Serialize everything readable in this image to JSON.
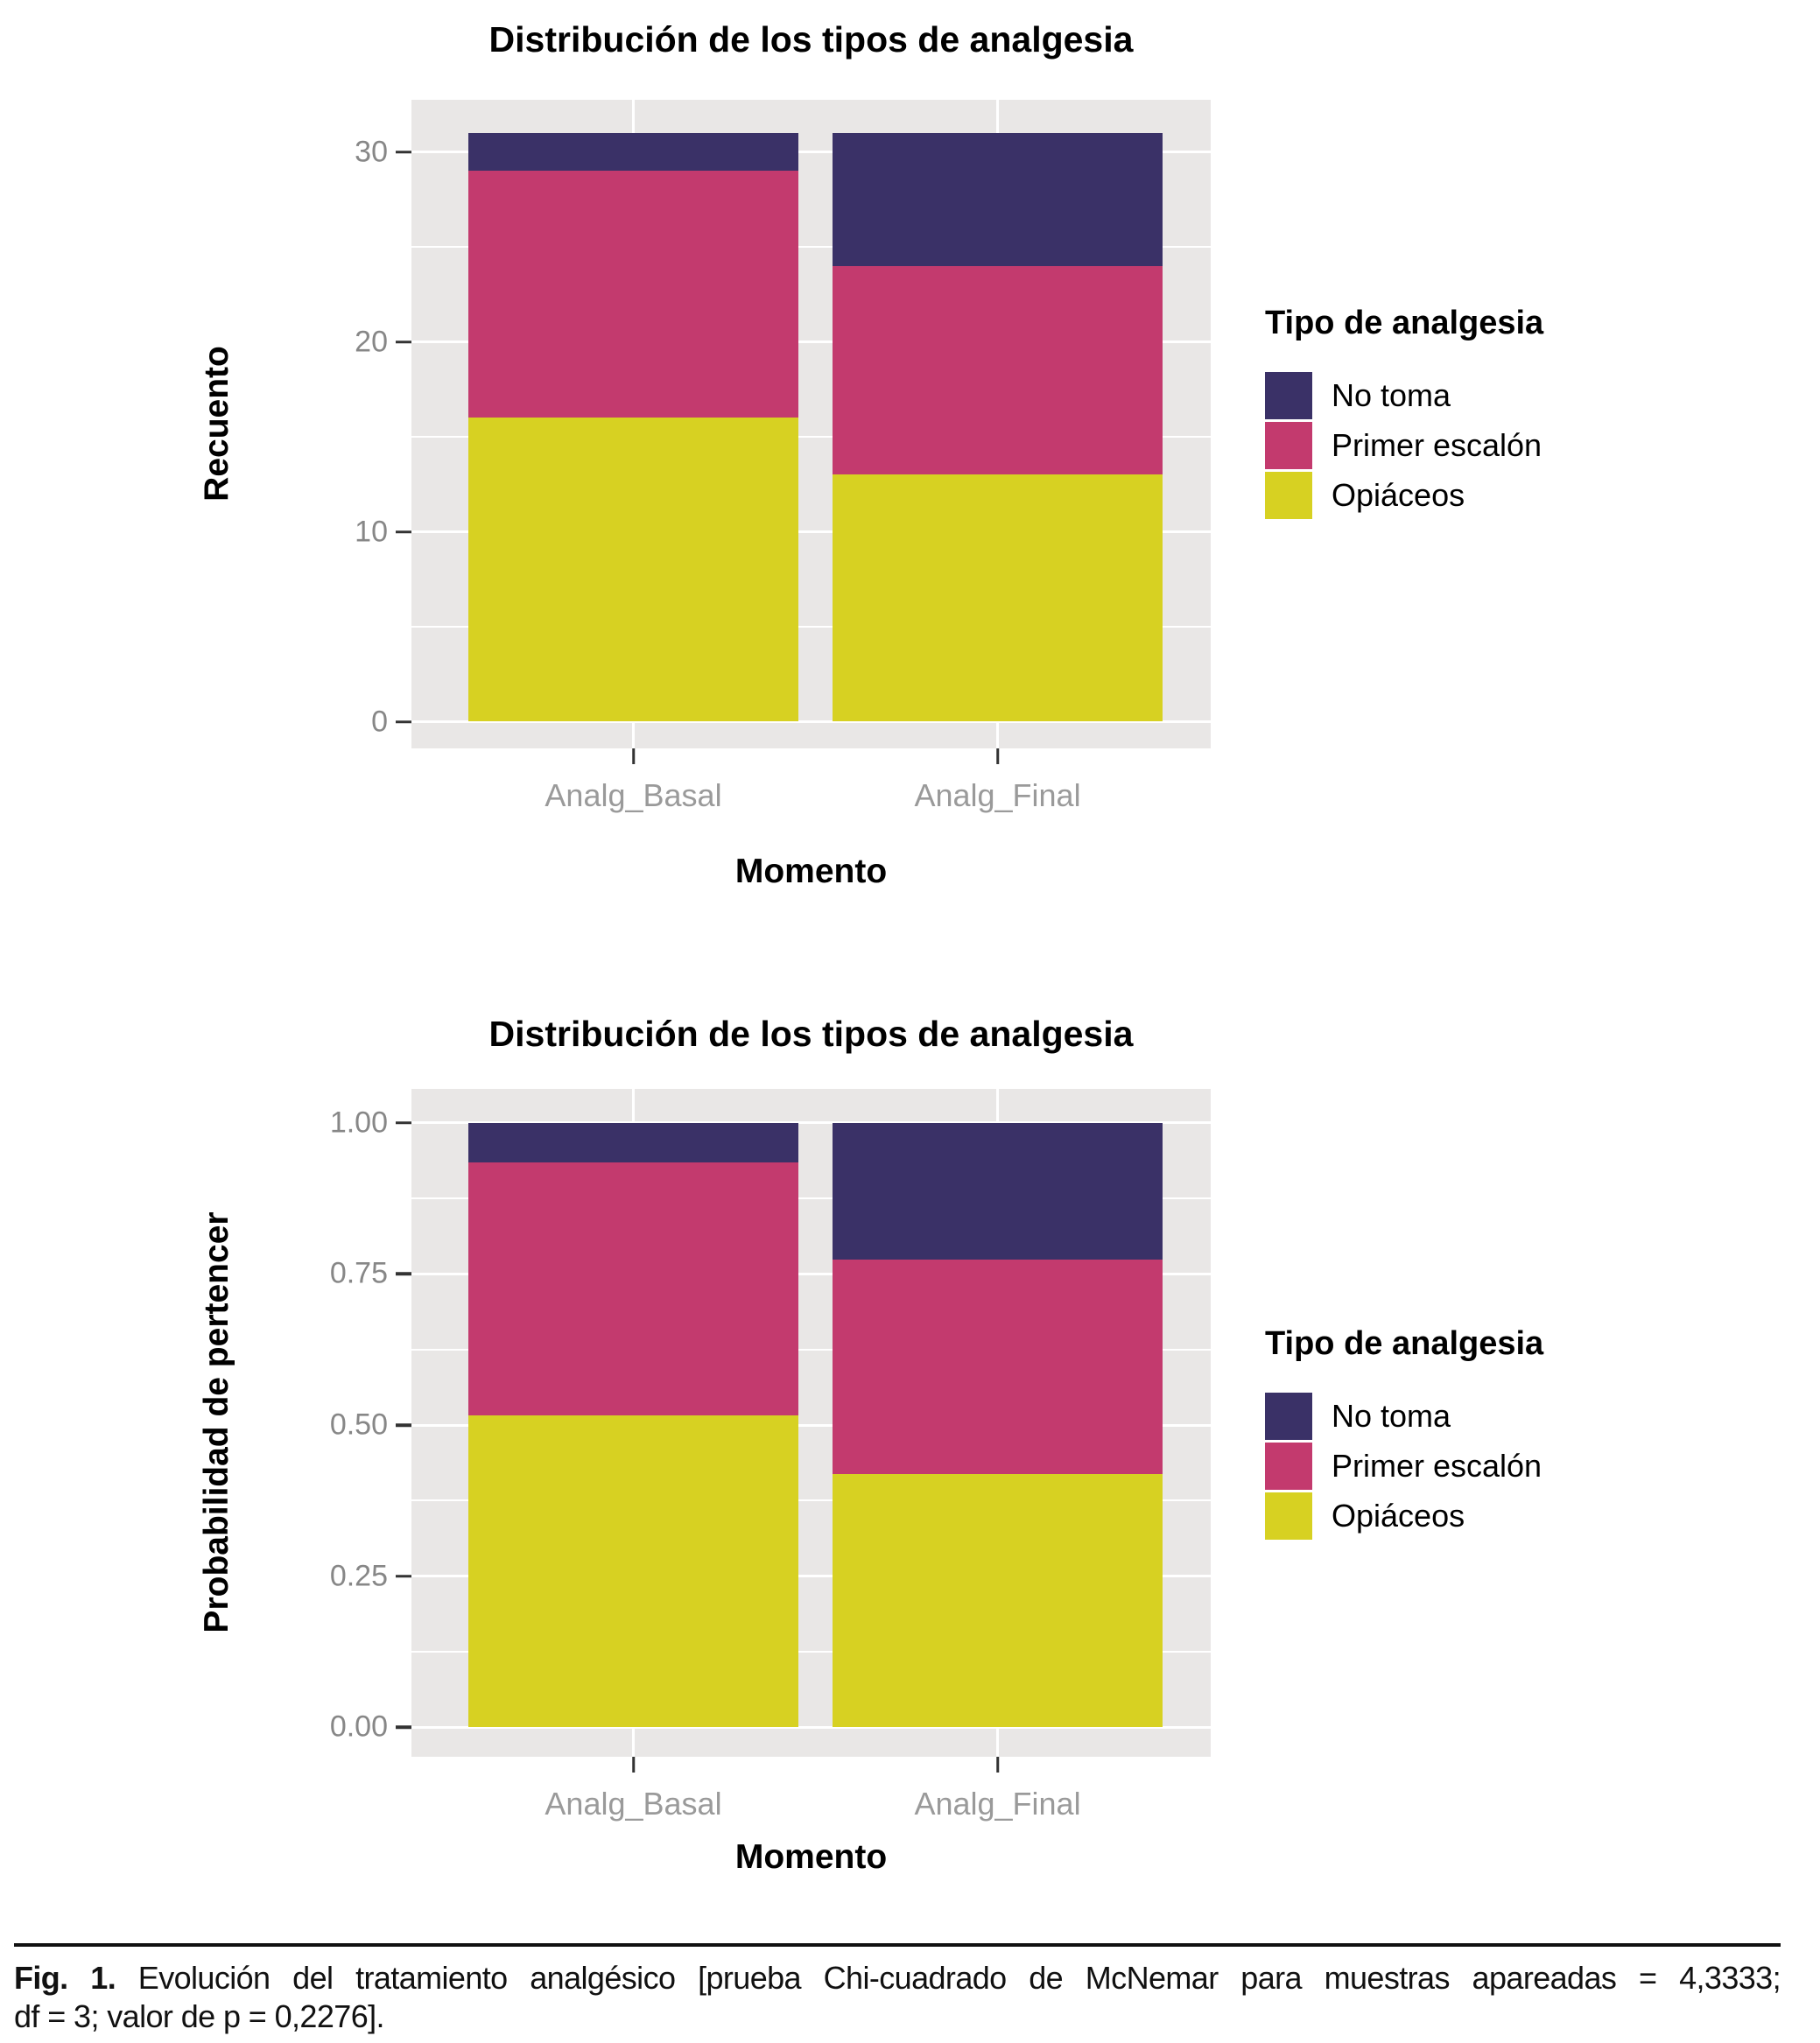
{
  "legend": {
    "title": "Tipo de analgesia",
    "items": [
      {
        "label": "No toma",
        "color": "#3A3167"
      },
      {
        "label": "Primer escalón",
        "color": "#C33A6E"
      },
      {
        "label": "Opiáceos",
        "color": "#D7D122"
      }
    ]
  },
  "chart_data": [
    {
      "type": "bar",
      "stacked": true,
      "title": "Distribución de los tipos de analgesia",
      "xlabel": "Momento",
      "ylabel": "Recuento",
      "categories": [
        "Analg_Basal",
        "Analg_Final"
      ],
      "series": [
        {
          "name": "Opiáceos",
          "color": "#D7D122",
          "values": [
            16,
            13
          ]
        },
        {
          "name": "Primer escalón",
          "color": "#C33A6E",
          "values": [
            13,
            11
          ]
        },
        {
          "name": "No toma",
          "color": "#3A3167",
          "values": [
            2,
            7
          ]
        }
      ],
      "totals": [
        31,
        31
      ],
      "ylim": [
        0,
        31
      ],
      "yticks": [
        0,
        10,
        20,
        30
      ],
      "ytick_labels": [
        "0",
        "10",
        "20",
        "30"
      ],
      "yticks_minor": [
        5,
        15,
        25
      ],
      "grid": true,
      "legend_title": "Tipo de analgesia",
      "legend_position": "right"
    },
    {
      "type": "bar",
      "stacked": true,
      "title": "Distribución de los tipos de analgesia",
      "xlabel": "Momento",
      "ylabel": "Probabilidad de pertencer",
      "categories": [
        "Analg_Basal",
        "Analg_Final"
      ],
      "series": [
        {
          "name": "Opiáceos",
          "color": "#D7D122",
          "values": [
            0.516,
            0.419
          ]
        },
        {
          "name": "Primer escalón",
          "color": "#C33A6E",
          "values": [
            0.419,
            0.355
          ]
        },
        {
          "name": "No toma",
          "color": "#3A3167",
          "values": [
            0.065,
            0.226
          ]
        }
      ],
      "totals": [
        1.0,
        1.0
      ],
      "ylim": [
        0,
        1.0
      ],
      "yticks": [
        0,
        0.25,
        0.5,
        0.75,
        1.0
      ],
      "ytick_labels": [
        "0.00",
        "0.25",
        "0.50",
        "0.75",
        "1.00"
      ],
      "yticks_minor": [
        0.125,
        0.375,
        0.625,
        0.875
      ],
      "grid": true,
      "legend_title": "Tipo de analgesia",
      "legend_position": "right"
    }
  ],
  "caption": {
    "fig_label": "Fig. 1.",
    "line1_rest": "Evolución del tratamiento analgésico [prueba Chi-cuadrado de McNemar para muestras apareadas = 4,3333;",
    "line2": "df = 3; valor de p = 0,2276]."
  }
}
